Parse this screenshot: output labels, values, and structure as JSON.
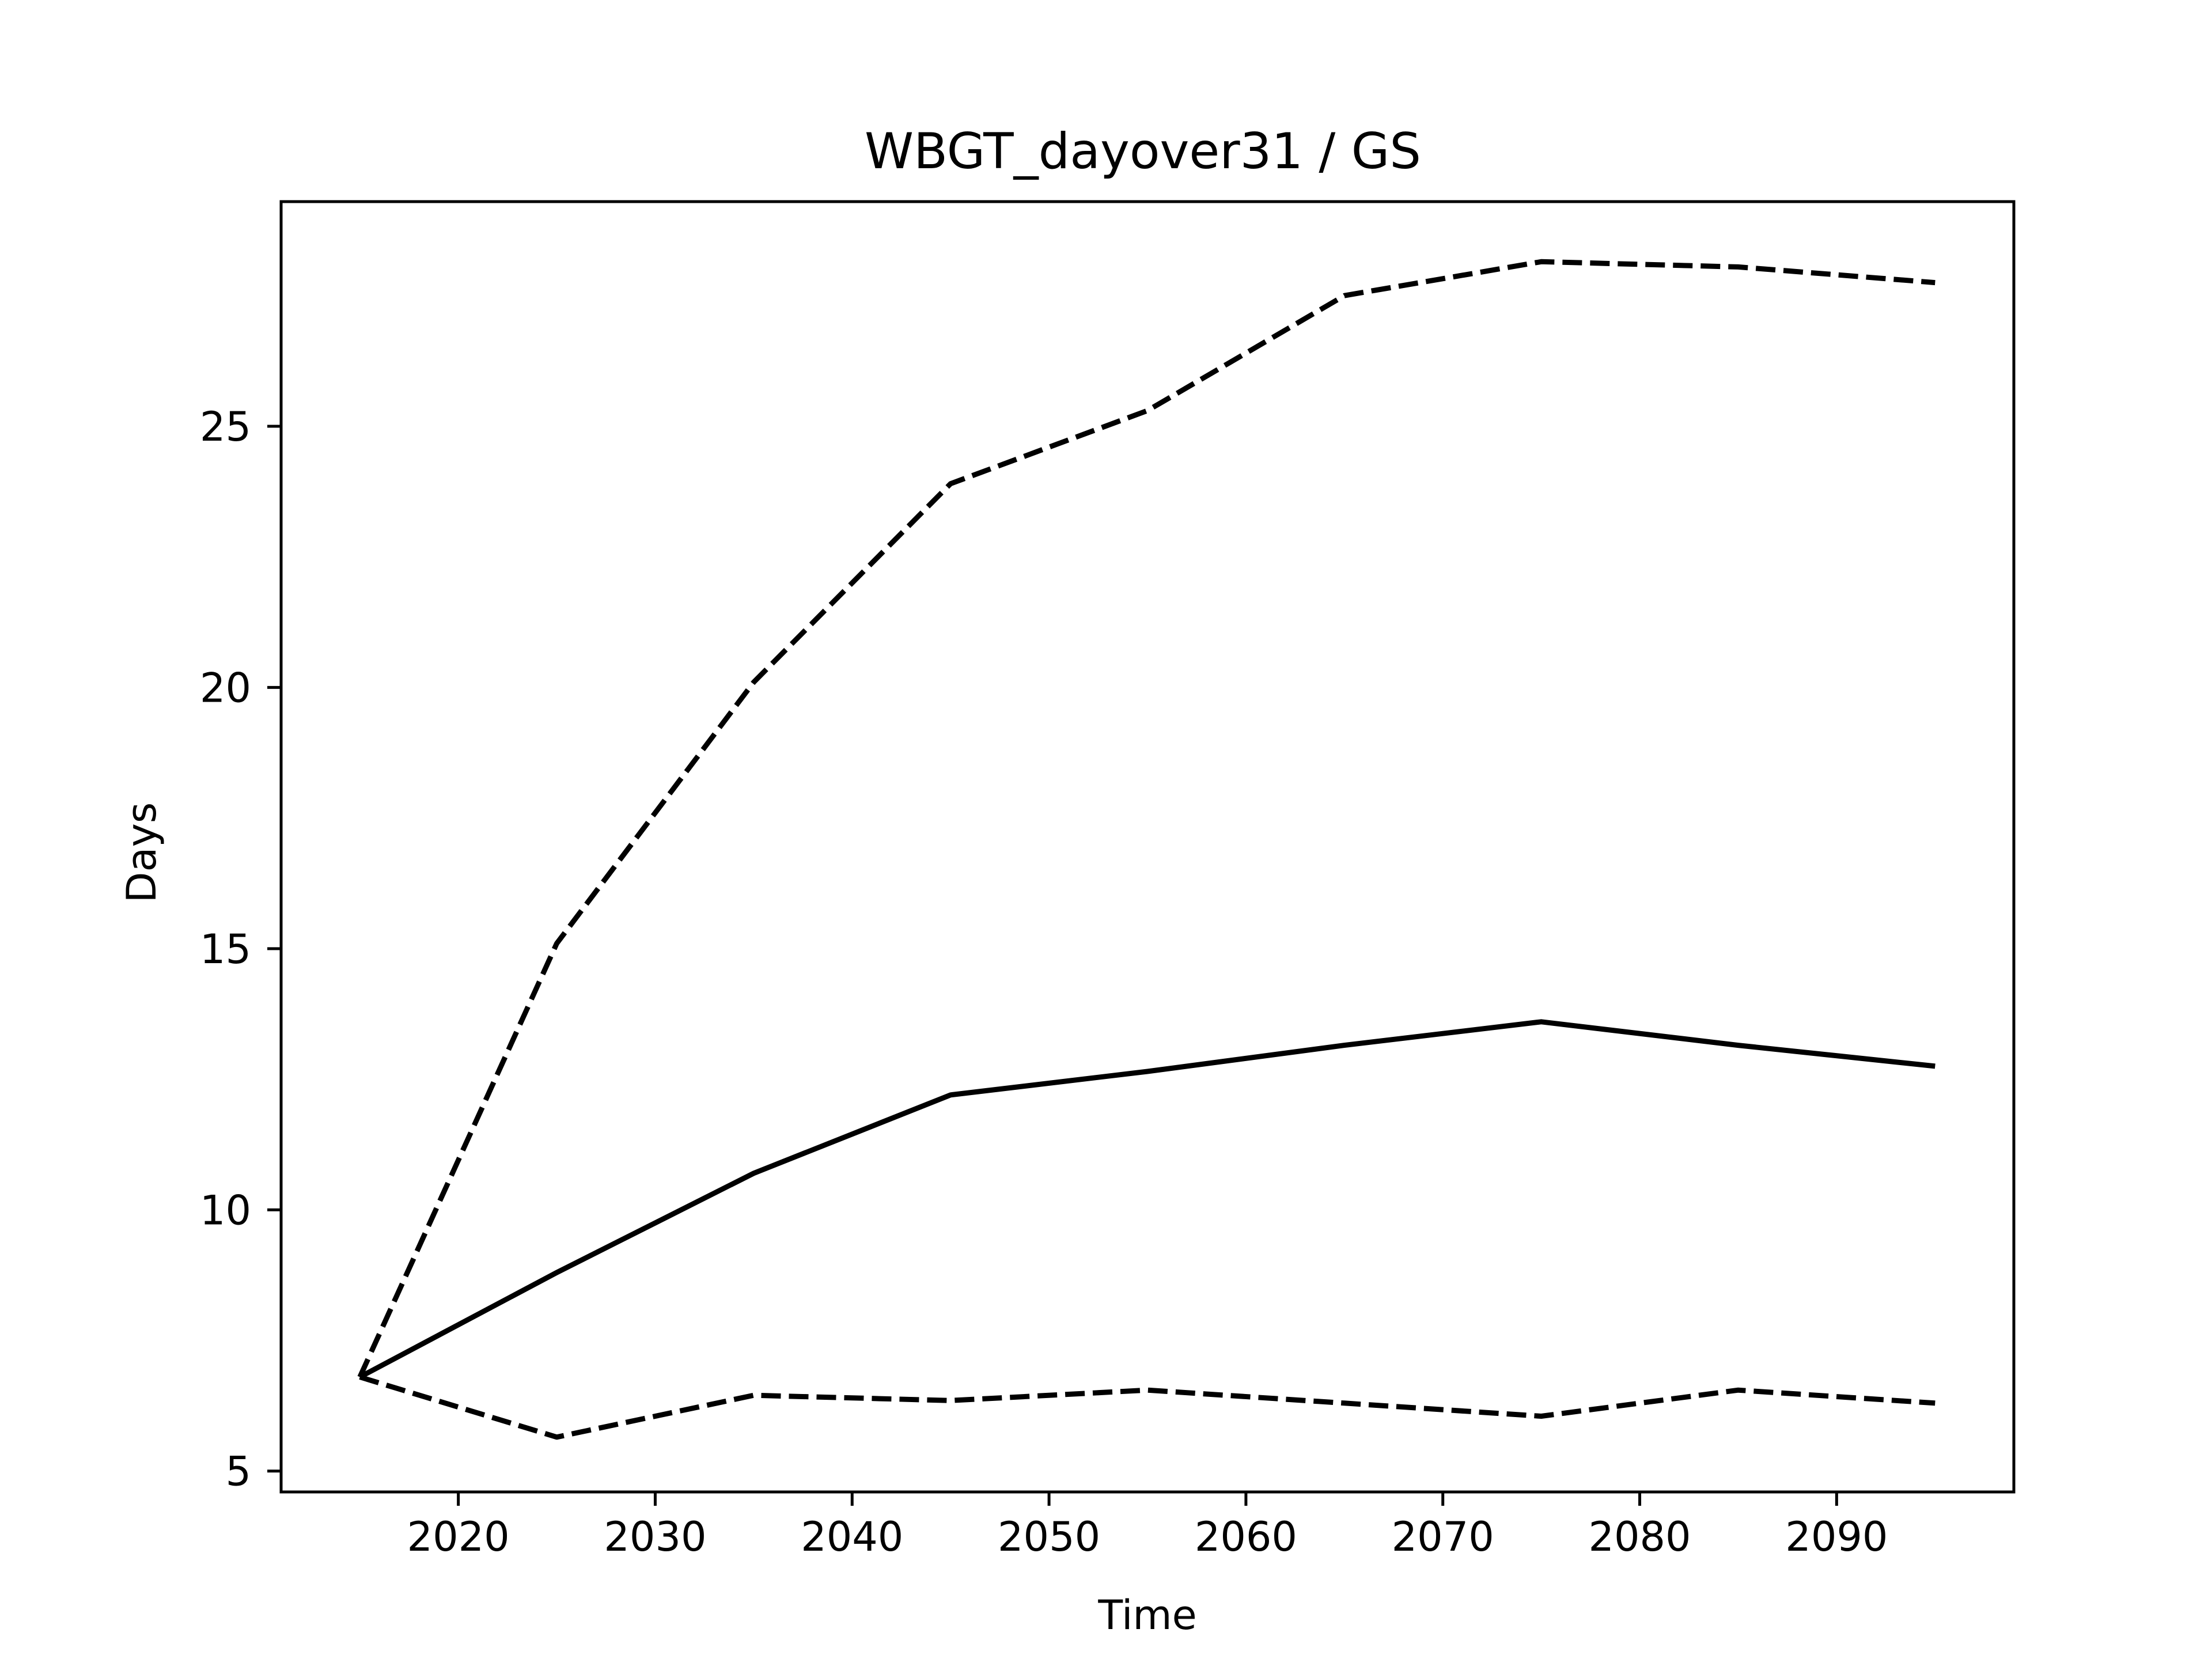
{
  "chart_data": {
    "type": "line",
    "title": "WBGT_dayover31 / GS",
    "xlabel": "Time",
    "ylabel": "Days",
    "xlim": [
      2011,
      2099
    ],
    "ylim": [
      4.6,
      29.3
    ],
    "xticks": [
      2020,
      2030,
      2040,
      2050,
      2060,
      2070,
      2080,
      2090
    ],
    "yticks": [
      5,
      10,
      15,
      20,
      25
    ],
    "grid": false,
    "legend": "none",
    "x": [
      2015,
      2025,
      2035,
      2045,
      2055,
      2065,
      2075,
      2085,
      2095
    ],
    "series": [
      {
        "style": "solid",
        "color": "#000000",
        "values": [
          6.8,
          8.8,
          10.7,
          12.2,
          12.65,
          13.15,
          13.6,
          13.15,
          12.75
        ]
      },
      {
        "style": "dashed",
        "color": "#000000",
        "values": [
          6.8,
          15.1,
          20.1,
          23.9,
          25.3,
          27.5,
          28.15,
          28.05,
          27.75
        ]
      },
      {
        "style": "dashed",
        "color": "#000000",
        "values": [
          6.8,
          5.65,
          6.45,
          6.35,
          6.55,
          6.3,
          6.05,
          6.55,
          6.3
        ]
      }
    ]
  }
}
